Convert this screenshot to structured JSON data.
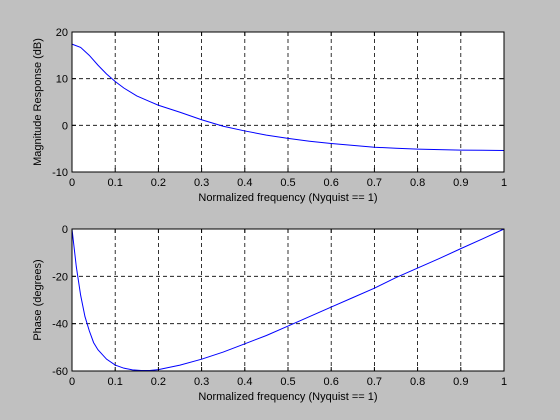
{
  "colors": {
    "figure_background": "#c0c0c0",
    "axes_background": "#ffffff",
    "line": "#0000ff",
    "grid": "#000000"
  },
  "chart_data": [
    {
      "type": "line",
      "xlabel": "Normalized frequency (Nyquist == 1)",
      "ylabel": "Magnitude Response (dB)",
      "xlim": [
        0,
        1
      ],
      "ylim": [
        -10,
        20
      ],
      "xticks": [
        0,
        0.1,
        0.2,
        0.3,
        0.4,
        0.5,
        0.6,
        0.7,
        0.8,
        0.9,
        1
      ],
      "xtick_labels": [
        "0",
        "0.1",
        "0.2",
        "0.3",
        "0.4",
        "0.5",
        "0.6",
        "0.7",
        "0.8",
        "0.9",
        "1"
      ],
      "yticks": [
        -10,
        0,
        10,
        20
      ],
      "ytick_labels": [
        "-10",
        "0",
        "10",
        "20"
      ],
      "grid": true,
      "grid_style": "dashed",
      "series": [
        {
          "color": "#0000ff",
          "x": [
            0,
            0.02,
            0.04,
            0.06,
            0.08,
            0.1,
            0.12,
            0.15,
            0.18,
            0.2,
            0.25,
            0.3,
            0.35,
            0.4,
            0.45,
            0.5,
            0.55,
            0.6,
            0.65,
            0.7,
            0.75,
            0.8,
            0.85,
            0.9,
            0.95,
            1
          ],
          "y": [
            17.4,
            16.7,
            15.0,
            12.9,
            11.0,
            9.4,
            8.0,
            6.3,
            5.1,
            4.3,
            2.8,
            1.2,
            -0.2,
            -1.2,
            -2.1,
            -2.8,
            -3.4,
            -3.9,
            -4.3,
            -4.7,
            -4.9,
            -5.1,
            -5.2,
            -5.3,
            -5.35,
            -5.4
          ]
        }
      ]
    },
    {
      "type": "line",
      "xlabel": "Normalized frequency (Nyquist == 1)",
      "ylabel": "Phase (degrees)",
      "xlim": [
        0,
        1
      ],
      "ylim": [
        -60,
        0
      ],
      "xticks": [
        0,
        0.1,
        0.2,
        0.3,
        0.4,
        0.5,
        0.6,
        0.7,
        0.8,
        0.9,
        1
      ],
      "xtick_labels": [
        "0",
        "0.1",
        "0.2",
        "0.3",
        "0.4",
        "0.5",
        "0.6",
        "0.7",
        "0.8",
        "0.9",
        "1"
      ],
      "yticks": [
        -60,
        -40,
        -20,
        0
      ],
      "ytick_labels": [
        "-60",
        "-40",
        "-20",
        "0"
      ],
      "grid": true,
      "grid_style": "dashed",
      "series": [
        {
          "color": "#0000ff",
          "x": [
            0,
            0.005,
            0.01,
            0.02,
            0.03,
            0.04,
            0.05,
            0.06,
            0.08,
            0.1,
            0.12,
            0.14,
            0.16,
            0.18,
            0.2,
            0.25,
            0.3,
            0.35,
            0.4,
            0.45,
            0.5,
            0.55,
            0.6,
            0.65,
            0.7,
            0.75,
            0.8,
            0.85,
            0.9,
            0.95,
            1
          ],
          "y": [
            0,
            -8,
            -16,
            -28,
            -37,
            -43,
            -48,
            -51,
            -55,
            -57.5,
            -58.8,
            -59.5,
            -59.8,
            -59.8,
            -59.4,
            -57.5,
            -55,
            -52,
            -48.5,
            -45,
            -41,
            -37,
            -33,
            -29,
            -25,
            -20.5,
            -16.5,
            -12.5,
            -8.3,
            -4.2,
            0
          ]
        }
      ]
    }
  ]
}
